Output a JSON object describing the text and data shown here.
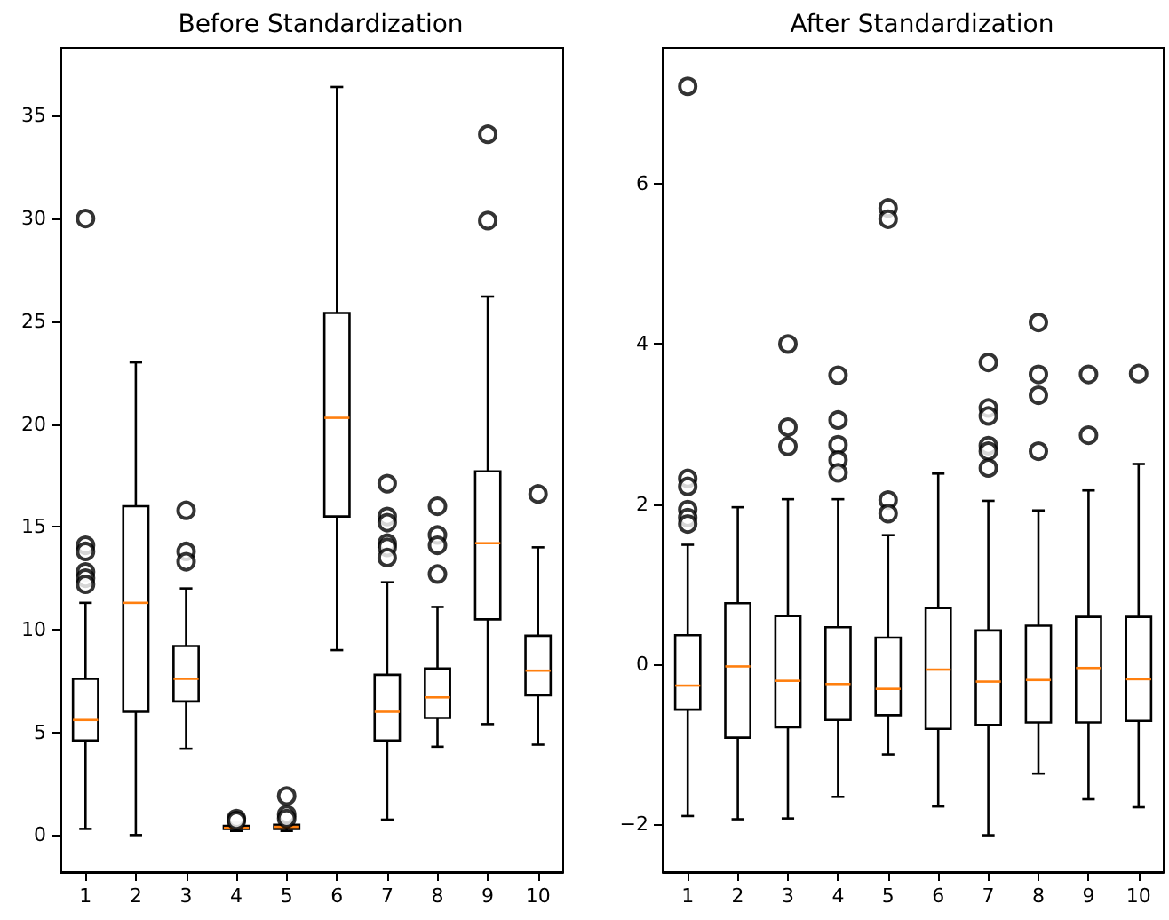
{
  "chart_data": [
    {
      "type": "box",
      "title": "Before Standardization",
      "categories": [
        "1",
        "2",
        "3",
        "4",
        "5",
        "6",
        "7",
        "8",
        "9",
        "10"
      ],
      "ylim": [
        -1.8,
        38.3
      ],
      "yticks": [
        0,
        5,
        10,
        15,
        20,
        25,
        30,
        35
      ],
      "grid": false,
      "series": [
        {
          "color": "#000000",
          "boxes": [
            {
              "low": 0.3,
              "q1": 4.6,
              "median": 5.6,
              "q3": 7.6,
              "high": 11.3,
              "outliers": [
                14.1,
                13.8,
                12.8,
                12.5,
                12.2,
                30.0
              ]
            },
            {
              "low": 0.0,
              "q1": 6.0,
              "median": 11.3,
              "q3": 16.0,
              "high": 23.0
            },
            {
              "low": 4.2,
              "q1": 6.5,
              "median": 7.6,
              "q3": 9.2,
              "high": 12.0,
              "outliers": [
                15.8,
                13.8,
                13.3
              ]
            },
            {
              "low": 0.2,
              "q1": 0.3,
              "median": 0.35,
              "q3": 0.45,
              "high": 0.6,
              "outliers": [
                0.8,
                0.7
              ]
            },
            {
              "low": 0.2,
              "q1": 0.3,
              "median": 0.4,
              "q3": 0.5,
              "high": 0.6,
              "outliers": [
                1.9,
                1.0,
                0.8
              ]
            },
            {
              "low": 9.0,
              "q1": 15.5,
              "median": 20.3,
              "q3": 25.4,
              "high": 36.4
            },
            {
              "low": 0.75,
              "q1": 4.6,
              "median": 6.0,
              "q3": 7.8,
              "high": 12.3,
              "outliers": [
                17.1,
                15.5,
                15.2,
                14.2,
                14.0,
                13.5
              ]
            },
            {
              "low": 4.3,
              "q1": 5.7,
              "median": 6.7,
              "q3": 8.1,
              "high": 11.1,
              "outliers": [
                16.0,
                14.6,
                14.1,
                12.7
              ]
            },
            {
              "low": 5.4,
              "q1": 10.5,
              "median": 14.2,
              "q3": 17.7,
              "high": 26.2,
              "outliers": [
                34.1,
                29.9
              ]
            },
            {
              "low": 4.4,
              "q1": 6.8,
              "median": 8.0,
              "q3": 9.7,
              "high": 14.0,
              "outliers": [
                16.6
              ]
            }
          ]
        }
      ]
    },
    {
      "type": "box",
      "title": "After Standardization",
      "categories": [
        "1",
        "2",
        "3",
        "4",
        "5",
        "6",
        "7",
        "8",
        "9",
        "10"
      ],
      "ylim": [
        -2.6,
        7.7
      ],
      "yticks": [
        -2,
        0,
        2,
        4,
        6
      ],
      "grid": false,
      "series": [
        {
          "color": "#000000",
          "boxes": [
            {
              "low": -1.9,
              "q1": -0.57,
              "median": -0.27,
              "q3": 0.36,
              "high": 1.49,
              "outliers": [
                2.32,
                2.22,
                1.93,
                1.83,
                1.75,
                7.22
              ]
            },
            {
              "low": -1.94,
              "q1": -0.92,
              "median": -0.03,
              "q3": 0.76,
              "high": 1.96
            },
            {
              "low": -1.93,
              "q1": -0.79,
              "median": -0.21,
              "q3": 0.6,
              "high": 2.06,
              "outliers": [
                4.0,
                2.96,
                2.72
              ]
            },
            {
              "low": -1.66,
              "q1": -0.7,
              "median": -0.25,
              "q3": 0.46,
              "high": 2.06,
              "outliers": [
                3.61,
                3.05,
                2.74,
                2.55,
                2.39
              ]
            },
            {
              "low": -1.13,
              "q1": -0.64,
              "median": -0.31,
              "q3": 0.33,
              "high": 1.61,
              "outliers": [
                5.7,
                5.56,
                2.05,
                1.88
              ]
            },
            {
              "low": -1.78,
              "q1": -0.81,
              "median": -0.07,
              "q3": 0.7,
              "high": 2.38
            },
            {
              "low": -2.14,
              "q1": -0.76,
              "median": -0.22,
              "q3": 0.42,
              "high": 2.04,
              "outliers": [
                3.77,
                3.2,
                3.1,
                2.73,
                2.66,
                2.45
              ]
            },
            {
              "low": -1.37,
              "q1": -0.73,
              "median": -0.2,
              "q3": 0.48,
              "high": 1.92,
              "outliers": [
                4.27,
                3.62,
                3.36,
                2.66
              ]
            },
            {
              "low": -1.69,
              "q1": -0.73,
              "median": -0.05,
              "q3": 0.59,
              "high": 2.17,
              "outliers": [
                3.62,
                2.86
              ]
            },
            {
              "low": -1.79,
              "q1": -0.71,
              "median": -0.19,
              "q3": 0.59,
              "high": 2.5,
              "outliers": [
                3.63
              ]
            }
          ]
        }
      ]
    }
  ]
}
